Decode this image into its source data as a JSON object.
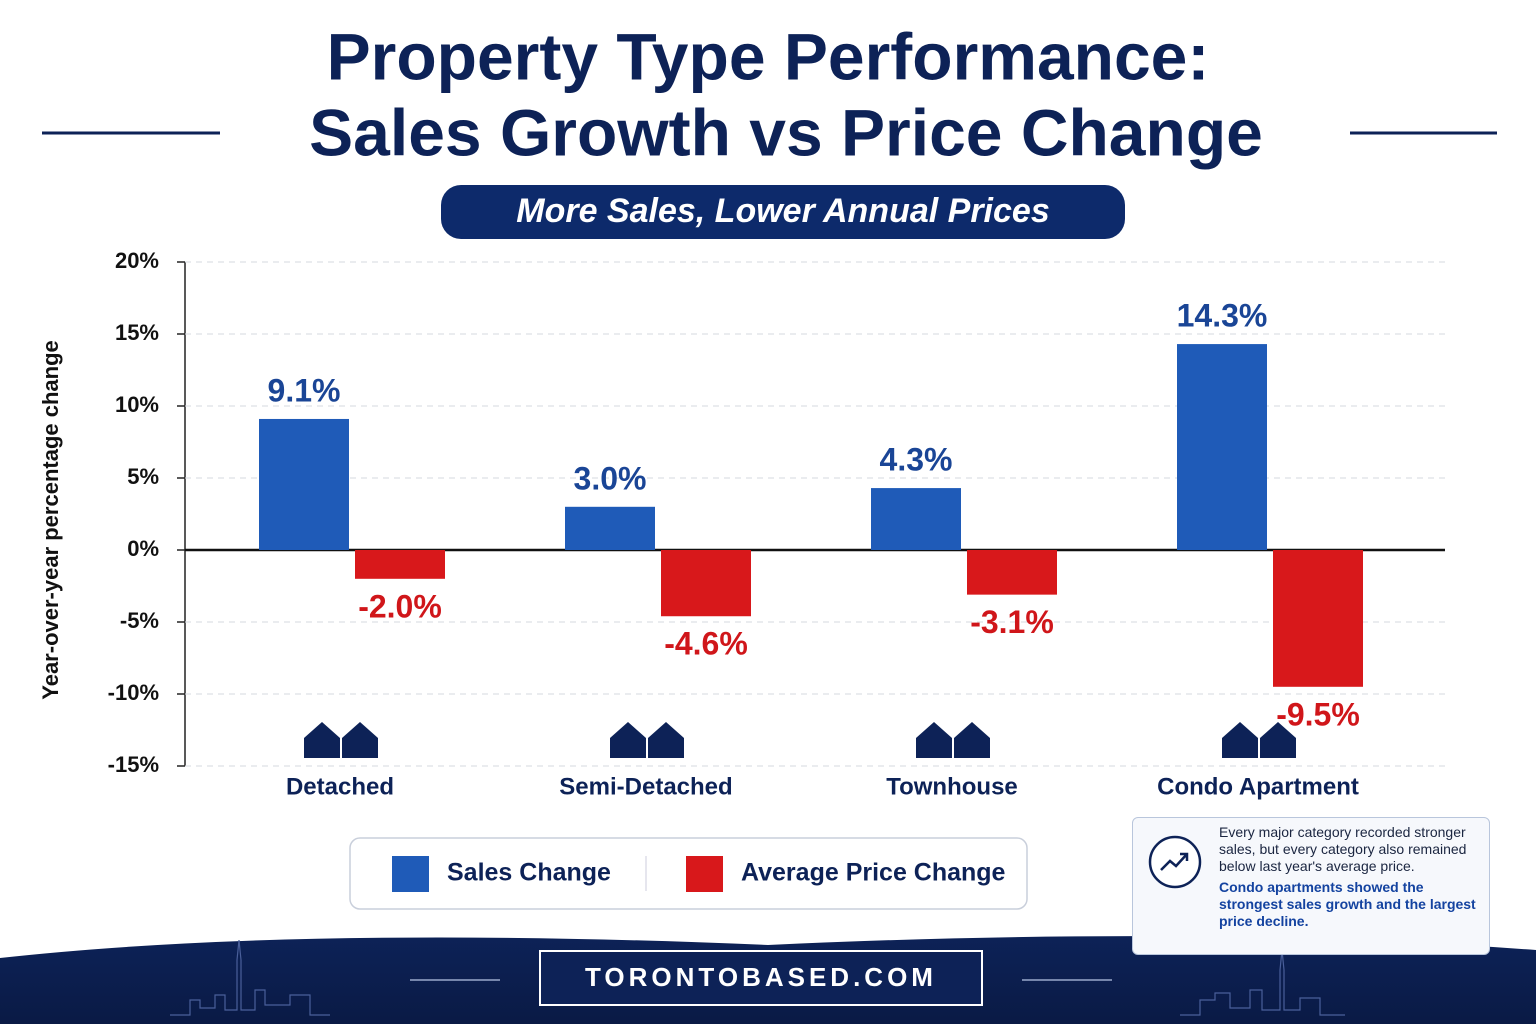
{
  "chart_data": {
    "type": "bar",
    "title": [
      "Property Type Performance:",
      "Sales Growth vs Price Change"
    ],
    "subtitle": "More Sales, Lower Annual Prices",
    "y_label": "Year-over-year percentage change",
    "categories": [
      "Detached",
      "Semi-Detached",
      "Townhouse",
      "Condo Apartment"
    ],
    "series": [
      {
        "name": "Sales Change",
        "color": "#1f5bb8",
        "values": [
          9.1,
          3.0,
          4.3,
          14.3
        ],
        "value_labels": [
          "9.1%",
          "3.0%",
          "4.3%",
          "14.3%"
        ]
      },
      {
        "name": "Average Price Change",
        "color": "#d8181b",
        "values": [
          -2.0,
          -4.6,
          -3.1,
          -9.5
        ],
        "value_labels": [
          "-2.0%",
          "-4.6%",
          "-3.1%",
          "-9.5%"
        ]
      }
    ],
    "ylim": [
      -15,
      20
    ],
    "yticks": [
      {
        "value": 20,
        "label": "20%"
      },
      {
        "value": 15,
        "label": "15%"
      },
      {
        "value": 10,
        "label": "10%"
      },
      {
        "value": 5,
        "label": "5%"
      },
      {
        "value": 0,
        "label": "0%"
      },
      {
        "value": -5,
        "label": "-5%"
      },
      {
        "value": -10,
        "label": "-10%"
      },
      {
        "value": -15,
        "label": "-15%"
      }
    ],
    "grid": true
  },
  "note": {
    "text": "Every major category recorded stronger sales, but every category also remained below last year's average price.",
    "highlight": "Condo apartments showed the strongest sales growth and the largest price decline."
  },
  "footer": "TORONTOBASED.COM"
}
